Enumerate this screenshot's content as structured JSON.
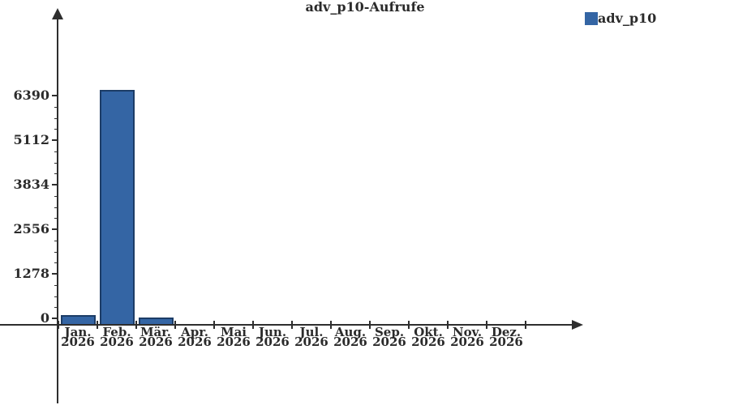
{
  "title": "adv_p10-Aufrufe",
  "legend": {
    "label": "adv_p10",
    "position": "top-right"
  },
  "colors": {
    "bar_fill": "#3465a4",
    "bar_border": "#1c3c66",
    "axis": "#2e2e2e",
    "text": "#2b2b2b"
  },
  "chart_data": {
    "type": "bar",
    "title": "adv_p10-Aufrufe",
    "categories": [
      "Jan.",
      "Feb.",
      "Mär.",
      "Apr.",
      "Mai",
      "Jun.",
      "Jul.",
      "Aug.",
      "Sep.",
      "Okt.",
      "Nov.",
      "Dez."
    ],
    "category_year": "2026",
    "series": [
      {
        "name": "adv_p10",
        "values": [
          90,
          6550,
          30,
          0,
          0,
          0,
          0,
          0,
          0,
          0,
          0,
          0
        ]
      }
    ],
    "y_ticks": [
      0,
      1278,
      2556,
      3834,
      5112,
      6390
    ],
    "ylim": [
      0,
      6390
    ],
    "xlabel": "",
    "ylabel": "",
    "grid": false,
    "legend_position": "top-right"
  }
}
